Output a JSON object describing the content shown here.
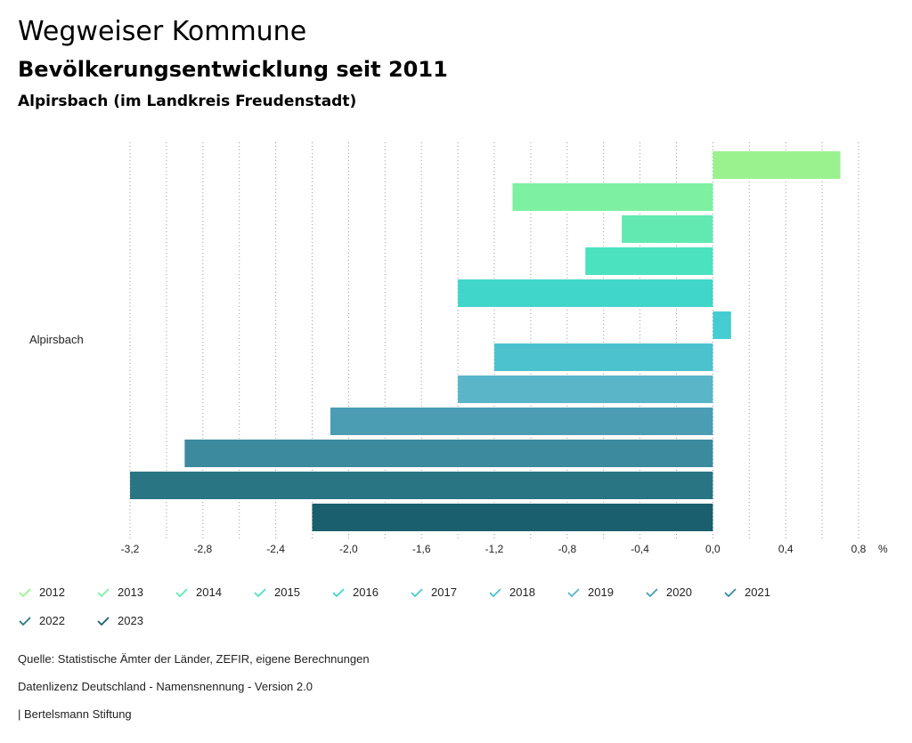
{
  "header": {
    "title": "Wegweiser Kommune",
    "subtitle": "Bevölkerungsentwicklung seit 2011",
    "region": "Alpirsbach (im Landkreis Freudenstadt)"
  },
  "chart_data": {
    "type": "bar",
    "orientation": "horizontal",
    "categories": [
      "Alpirsbach"
    ],
    "unit": "%",
    "xlim": [
      -3.2,
      0.8
    ],
    "ticks": [
      "-3,2",
      "-2,8",
      "-2,4",
      "-2,0",
      "-1,6",
      "-1,2",
      "-0,8",
      "-0,4",
      "0,0",
      "0,4",
      "0,8"
    ],
    "tick_values": [
      -3.2,
      -2.8,
      -2.4,
      -2.0,
      -1.6,
      -1.2,
      -0.8,
      -0.4,
      0.0,
      0.4,
      0.8
    ],
    "grid": true,
    "legend_position": "bottom",
    "series": [
      {
        "name": "2012",
        "values": [
          0.7
        ],
        "color": "#9af28f"
      },
      {
        "name": "2013",
        "values": [
          -1.1
        ],
        "color": "#7ef0a2"
      },
      {
        "name": "2014",
        "values": [
          -0.5
        ],
        "color": "#62e9b2"
      },
      {
        "name": "2015",
        "values": [
          -0.7
        ],
        "color": "#4be2c0"
      },
      {
        "name": "2016",
        "values": [
          -1.4
        ],
        "color": "#40d6c9"
      },
      {
        "name": "2017",
        "values": [
          0.1
        ],
        "color": "#45cdd2"
      },
      {
        "name": "2018",
        "values": [
          -1.2
        ],
        "color": "#4cc2cf"
      },
      {
        "name": "2019",
        "values": [
          -1.4
        ],
        "color": "#5bb5c8"
      },
      {
        "name": "2020",
        "values": [
          -2.1
        ],
        "color": "#4a9db3"
      },
      {
        "name": "2021",
        "values": [
          -2.9
        ],
        "color": "#3c8a9e"
      },
      {
        "name": "2022",
        "values": [
          -3.2
        ],
        "color": "#2a7584"
      },
      {
        "name": "2023",
        "values": [
          -2.2
        ],
        "color": "#1a5f6d"
      }
    ]
  },
  "footer": {
    "source": "Quelle: Statistische Ämter der Länder, ZEFIR, eigene Berechnungen",
    "license": "Datenlizenz Deutschland - Namensnennung - Version 2.0",
    "brand": "| Bertelsmann Stiftung"
  }
}
